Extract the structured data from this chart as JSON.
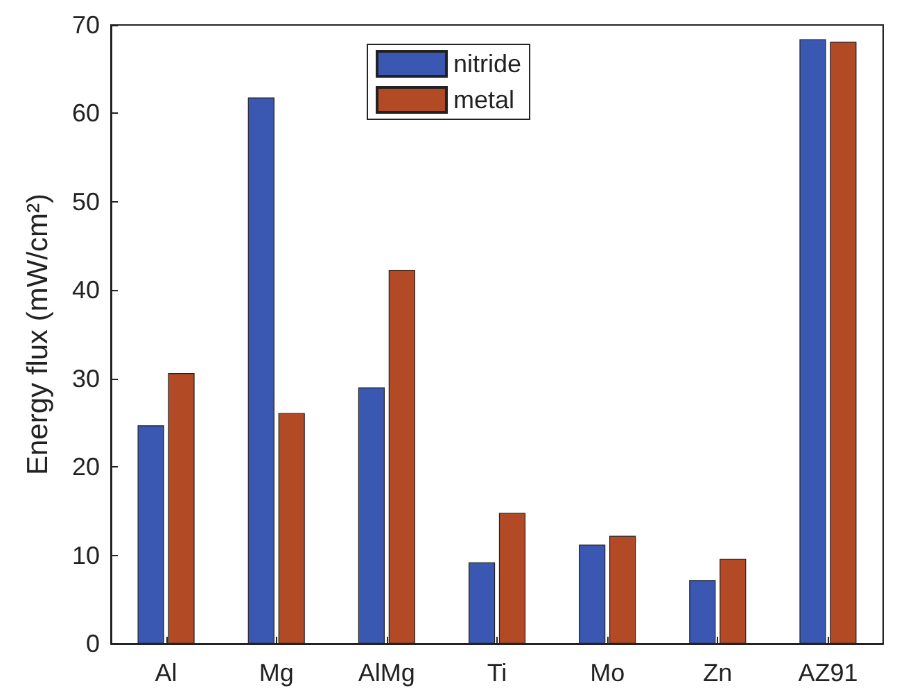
{
  "chart_data": {
    "type": "bar",
    "ylabel": "Energy flux (mW/cm²)",
    "categories": [
      "Al",
      "Mg",
      "AlMg",
      "Ti",
      "Mo",
      "Zn",
      "AZ91"
    ],
    "series": [
      {
        "name": "nitride",
        "color": "#3a57b2",
        "values": [
          24.7,
          61.8,
          29.0,
          9.2,
          11.2,
          7.2,
          68.4
        ]
      },
      {
        "name": "metal",
        "color": "#b24a26",
        "values": [
          30.6,
          26.1,
          42.3,
          14.8,
          12.2,
          9.6,
          68.1
        ]
      }
    ],
    "ylim": [
      0,
      70
    ],
    "yticks": [
      0,
      10,
      20,
      30,
      40,
      50,
      60,
      70
    ],
    "legend": "top"
  }
}
